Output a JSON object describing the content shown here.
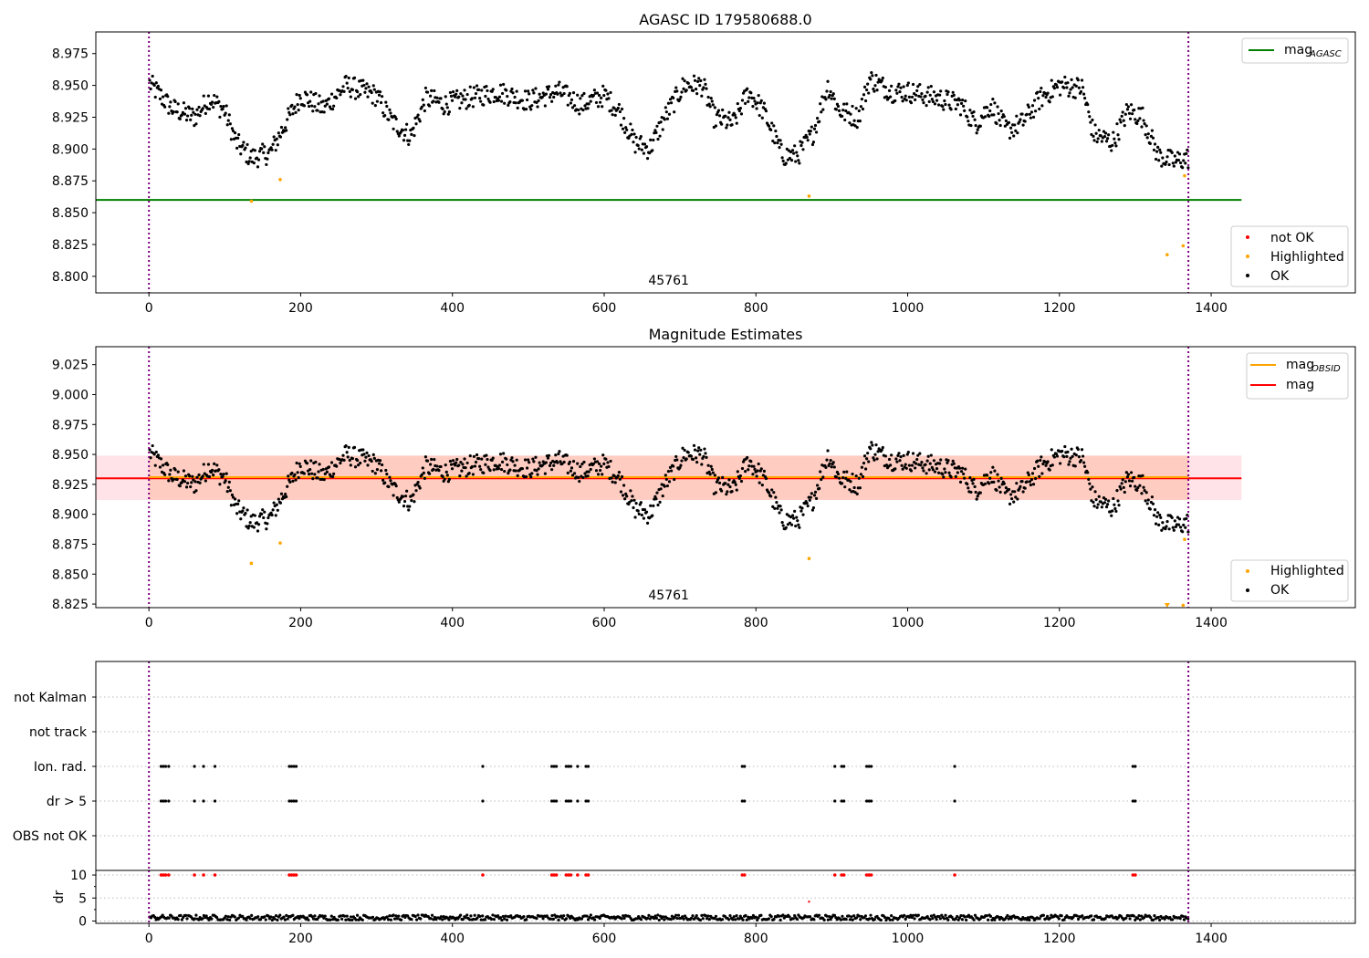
{
  "chart_data": [
    {
      "type": "scatter",
      "title": "AGASC ID 179580688.0",
      "xlim": [
        -70,
        1590
      ],
      "ylim": [
        8.787,
        8.992
      ],
      "xticks": [
        0,
        200,
        400,
        600,
        800,
        1000,
        1200,
        1400
      ],
      "yticks": [
        8.8,
        8.825,
        8.85,
        8.875,
        8.9,
        8.925,
        8.95,
        8.975
      ],
      "hlines": [
        {
          "name": "mag_AGASC",
          "y": 8.86,
          "x0": -70,
          "x1": 1440,
          "color": "#008000"
        }
      ],
      "vlines": [
        0,
        1370
      ],
      "obsid_label": {
        "text": "45761",
        "x": 685
      },
      "legend_top": {
        "position": "upper right",
        "entries": [
          {
            "label": "mag",
            "sub": "AGASC",
            "color": "#008000",
            "marker": "line"
          }
        ]
      },
      "legend_bottom": {
        "position": "lower right",
        "entries": [
          {
            "label": "not OK",
            "color": "#ff0000",
            "marker": "dot"
          },
          {
            "label": "Highlighted",
            "color": "#ffa500",
            "marker": "dot"
          },
          {
            "label": "OK",
            "color": "#000000",
            "marker": "dot"
          }
        ]
      },
      "series": [
        {
          "name": "OK",
          "color": "#000000",
          "marker": "dots",
          "source": "mag_curve"
        },
        {
          "name": "Highlighted",
          "color": "#ffa500",
          "points": [
            [
              135,
              8.859
            ],
            [
              173,
              8.876
            ],
            [
              870,
              8.863
            ],
            [
              1342,
              8.817
            ],
            [
              1363,
              8.824
            ],
            [
              1365,
              8.879
            ]
          ]
        }
      ]
    },
    {
      "type": "scatter",
      "title": "Magnitude Estimates",
      "xlim": [
        -70,
        1590
      ],
      "ylim": [
        8.822,
        9.04
      ],
      "xticks": [
        0,
        200,
        400,
        600,
        800,
        1000,
        1200,
        1400
      ],
      "yticks": [
        8.825,
        8.85,
        8.875,
        8.9,
        8.925,
        8.95,
        8.975,
        9.0,
        9.025
      ],
      "bands": [
        {
          "y0": 8.912,
          "y1": 8.949,
          "x0": -70,
          "x1": 1440,
          "color": "#ffc0cb",
          "opacity": 0.45
        },
        {
          "y0": 8.912,
          "y1": 8.949,
          "x0": 0,
          "x1": 1370,
          "color": "#ffa07a",
          "opacity": 0.35
        }
      ],
      "hlines": [
        {
          "name": "mag",
          "y": 8.93,
          "x0": -70,
          "x1": 1440,
          "color": "#ff0000"
        },
        {
          "name": "mag_OBSID",
          "y": 8.931,
          "x0": 0,
          "x1": 1370,
          "color": "#ffa500"
        }
      ],
      "vlines": [
        0,
        1370
      ],
      "obsid_label": {
        "text": "45761",
        "x": 685
      },
      "legend_top": {
        "position": "upper right",
        "entries": [
          {
            "label": "mag",
            "sub": "OBSID",
            "color": "#ffa500",
            "marker": "line"
          },
          {
            "label": "mag",
            "sub": "",
            "color": "#ff0000",
            "marker": "line"
          }
        ]
      },
      "legend_bottom": {
        "position": "lower right",
        "entries": [
          {
            "label": "Highlighted",
            "color": "#ffa500",
            "marker": "dot"
          },
          {
            "label": "OK",
            "color": "#000000",
            "marker": "dot"
          }
        ]
      },
      "series": [
        {
          "name": "OK",
          "color": "#000000",
          "marker": "dots",
          "source": "mag_curve"
        },
        {
          "name": "Highlighted",
          "color": "#ffa500",
          "points": [
            [
              135,
              8.859
            ],
            [
              173,
              8.876
            ],
            [
              870,
              8.863
            ],
            [
              1363,
              8.824
            ],
            [
              1365,
              8.879
            ]
          ]
        },
        {
          "name": "Highlighted (clipped)",
          "color": "#ffa500",
          "marker": "triangle-down",
          "points": [
            [
              1342,
              8.823
            ]
          ]
        }
      ]
    },
    {
      "type": "flags",
      "categories": [
        "not Kalman",
        "not track",
        "Ion. rad.",
        "dr > 5",
        "OBS not OK"
      ],
      "xlim": [
        -70,
        1590
      ],
      "vlines": [
        0,
        1370
      ],
      "flag_times": [
        16,
        19,
        22,
        26,
        60,
        72,
        87,
        185,
        188,
        191,
        194,
        440,
        531,
        534,
        537,
        550,
        553,
        556,
        565,
        576,
        579,
        782,
        785,
        904,
        913,
        916,
        946,
        949,
        952,
        1062,
        1297,
        1300
      ],
      "flag_rows": [
        "Ion. rad.",
        "dr > 5"
      ]
    },
    {
      "type": "scatter",
      "ylabel": "dr",
      "xlim": [
        -70,
        1590
      ],
      "ylim": [
        -0.5,
        11
      ],
      "yticks": [
        0,
        5,
        10
      ],
      "xticks": [
        0,
        200,
        400,
        600,
        800,
        1000,
        1200,
        1400
      ],
      "vlines": [
        0,
        1370
      ],
      "series": [
        {
          "name": "dr",
          "color": "#000000",
          "marker": "dots",
          "source": "dr_curve"
        },
        {
          "name": "not OK",
          "color": "#ff0000",
          "points": [
            [
              870,
              4.2
            ]
          ]
        },
        {
          "name": "not OK (clipped)",
          "color": "#ff0000",
          "y": 10,
          "source": "flag_times"
        }
      ]
    }
  ]
}
